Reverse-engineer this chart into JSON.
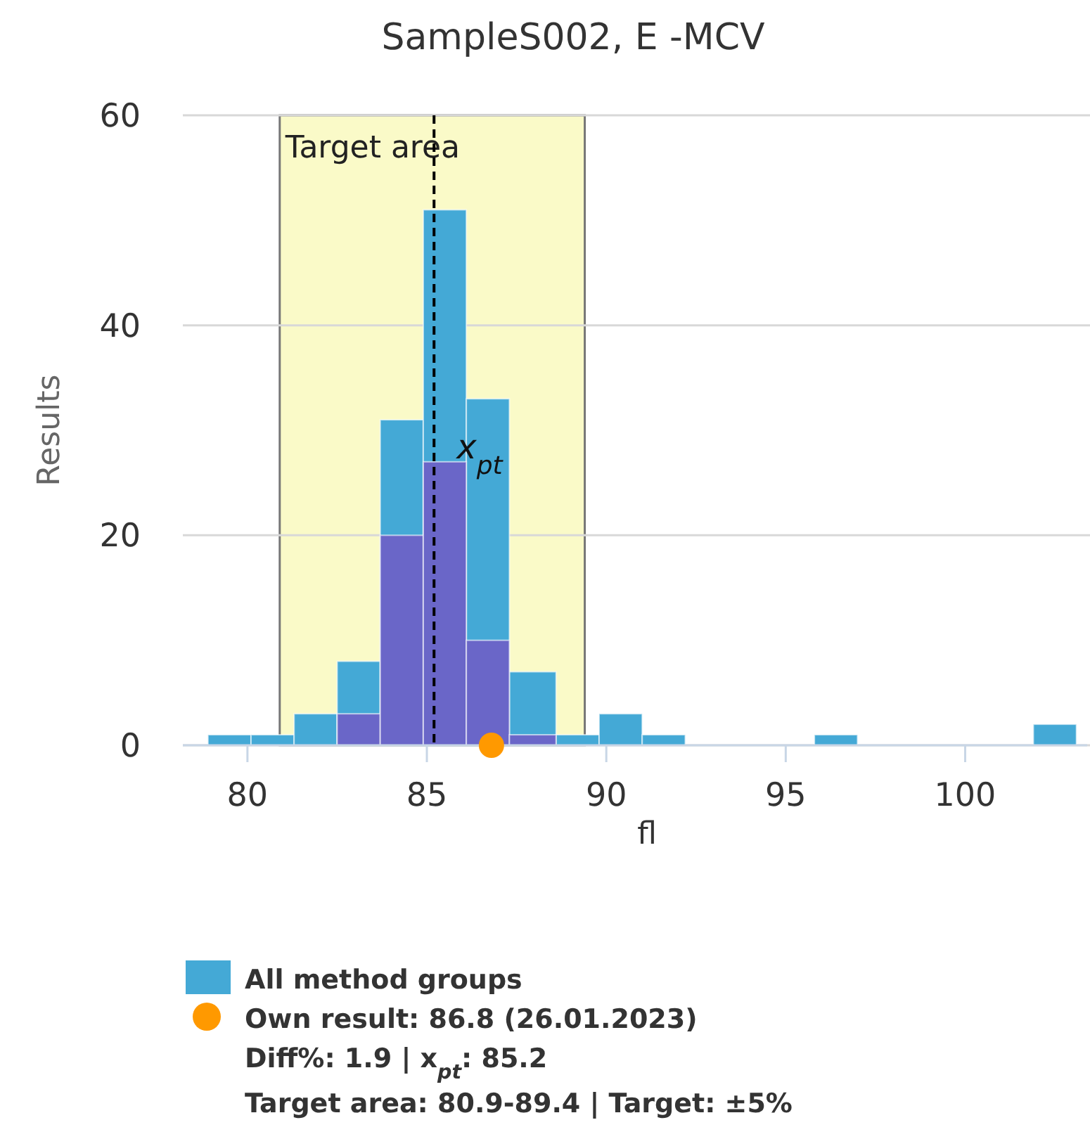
{
  "chart_data": {
    "type": "histogram",
    "title": "SampleS002, E -MCV",
    "xlabel": "fl",
    "ylabel": "Results",
    "bins": [
      78.9,
      80.1,
      81.3,
      82.5,
      83.7,
      84.9,
      86.1,
      87.3,
      88.6,
      89.8,
      91.0,
      92.2,
      95.8,
      97.0,
      101.9,
      103.1
    ],
    "series": [
      {
        "name": "All method groups",
        "color": "#44a9d6",
        "values": [
          1,
          1,
          3,
          8,
          31,
          51,
          33,
          7,
          1,
          3,
          1,
          0,
          1,
          0,
          2
        ]
      },
      {
        "color": "#6a66c8",
        "values": [
          0,
          0,
          0,
          3,
          20,
          27,
          10,
          1,
          0,
          0,
          0,
          0,
          0,
          0,
          0
        ]
      },
      {
        "type": "scatter",
        "name": "Own result: 86.8 (26.01.2023)",
        "color": "#ff9900",
        "x": [
          86.8
        ],
        "values": [
          0
        ],
        "marker": "circle"
      }
    ],
    "xlim": [
      78.2,
      103.4
    ],
    "xticks": [
      80,
      85,
      90,
      95,
      100
    ],
    "ylim": [
      0,
      60
    ],
    "yticks": [
      0,
      20,
      40,
      60
    ],
    "grid": "y",
    "legend": "bottom",
    "ref_lines": [
      {
        "axis": "x",
        "value": 85.2,
        "label": "x$_{pt}$",
        "line_style": "dashed",
        "color": "#000000"
      }
    ],
    "bands": [
      {
        "axis": "x",
        "from": 80.9,
        "to": 89.4,
        "label": "Target area",
        "color": "#fafac8"
      }
    ],
    "annotations": [
      "Diff%: 1.9 | x$_{pt}$: 85.2",
      "Target area: 80.9-89.4 | Target: ±5%"
    ]
  }
}
